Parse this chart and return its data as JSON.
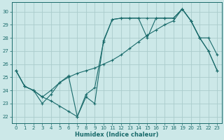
{
  "xlabel": "Humidex (Indice chaleur)",
  "bg_color": "#cce8e8",
  "grid_color": "#aacccc",
  "line_color": "#1a6b6b",
  "xlim": [
    -0.5,
    23.5
  ],
  "ylim": [
    21.5,
    30.7
  ],
  "xticks": [
    0,
    1,
    2,
    3,
    4,
    5,
    6,
    7,
    8,
    9,
    10,
    11,
    12,
    13,
    14,
    15,
    16,
    17,
    18,
    19,
    20,
    21,
    22,
    23
  ],
  "yticks": [
    22,
    23,
    24,
    25,
    26,
    27,
    28,
    29,
    30
  ],
  "line1_x": [
    0,
    1,
    2,
    3,
    4,
    5,
    6,
    7,
    8,
    9,
    10,
    11,
    12,
    13,
    14,
    15,
    16,
    17,
    18,
    19,
    20,
    21,
    22,
    23
  ],
  "line1_y": [
    25.5,
    24.3,
    24.0,
    23.5,
    23.2,
    22.8,
    22.4,
    22.0,
    23.5,
    23.0,
    27.8,
    29.4,
    29.5,
    29.5,
    29.5,
    29.5,
    29.5,
    29.5,
    29.5,
    30.2,
    29.3,
    28.0,
    27.0,
    25.5
  ],
  "line2_x": [
    0,
    1,
    2,
    3,
    4,
    5,
    6,
    7,
    8,
    9,
    10,
    11,
    12,
    13,
    14,
    15,
    16,
    17,
    18,
    19,
    20,
    21,
    22,
    23
  ],
  "line2_y": [
    25.5,
    24.3,
    24.0,
    23.0,
    23.7,
    24.6,
    25.0,
    25.3,
    25.5,
    25.7,
    26.0,
    26.3,
    26.7,
    27.2,
    27.7,
    28.2,
    28.6,
    29.0,
    29.3,
    30.2,
    29.3,
    28.0,
    27.0,
    25.5
  ],
  "line3_x": [
    0,
    1,
    2,
    3,
    4,
    5,
    6,
    7,
    8,
    9,
    10,
    11,
    12,
    13,
    14,
    15,
    16,
    17,
    18,
    19,
    20,
    21,
    22,
    23
  ],
  "line3_y": [
    25.5,
    24.3,
    24.0,
    23.5,
    24.0,
    24.6,
    25.1,
    22.0,
    23.7,
    24.2,
    27.7,
    29.4,
    29.5,
    29.5,
    29.5,
    28.0,
    29.5,
    29.5,
    29.5,
    30.2,
    29.3,
    28.0,
    28.0,
    26.7
  ]
}
